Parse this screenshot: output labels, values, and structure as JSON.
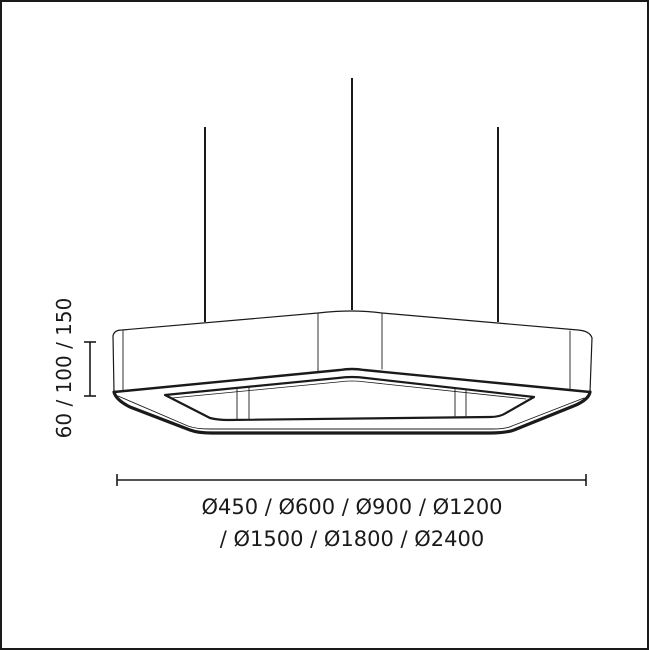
{
  "diagram": {
    "height_dimension": "60 / 100 / 150",
    "diameter_line_1": "Ø450 / Ø600 / Ø900 / Ø1200",
    "diameter_line_2": "/ Ø1500 / Ø1800 / Ø2400"
  },
  "colors": {
    "stroke": "#1a1a1a",
    "background": "#ffffff"
  }
}
